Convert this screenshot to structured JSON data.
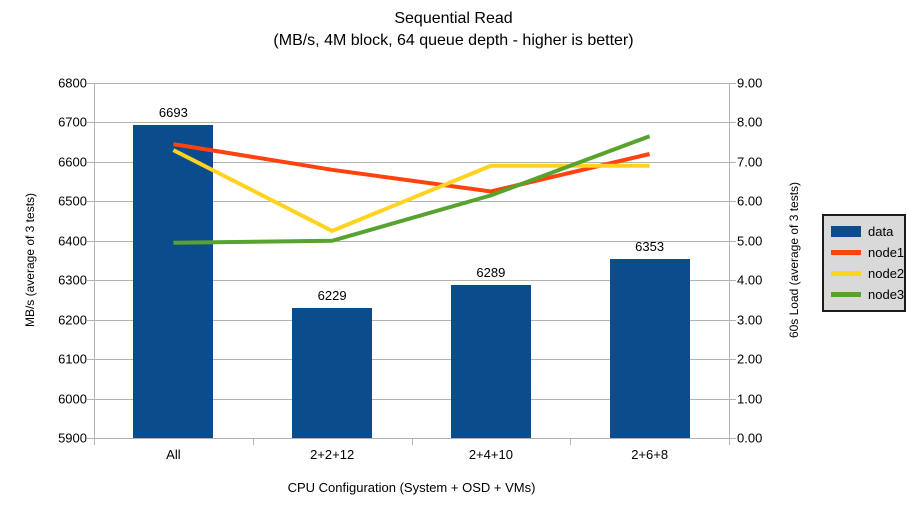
{
  "title": {
    "line1": "Sequential Read",
    "line2": "(MB/s, 4M block, 64 queue depth - higher is better)"
  },
  "chart_data": {
    "type": "combo_bar_line",
    "title": "Sequential Read",
    "subtitle": "(MB/s, 4M block, 64 queue depth - higher is better)",
    "categories": [
      "All",
      "2+2+12",
      "2+4+10",
      "2+6+8"
    ],
    "x_axis": {
      "label": "CPU Configuration (System + OSD + VMs)"
    },
    "left_axis": {
      "label": "MB/s (average of 3 tests)",
      "min": 5900,
      "max": 6800,
      "step": 100,
      "ticks": [
        "6800",
        "6700",
        "6600",
        "6500",
        "6400",
        "6300",
        "6200",
        "6100",
        "6000",
        "5900"
      ]
    },
    "right_axis": {
      "label": "60s Load (average of 3 tests)",
      "min": 0,
      "max": 9,
      "step": 1,
      "ticks": [
        "9.00",
        "8.00",
        "7.00",
        "6.00",
        "5.00",
        "4.00",
        "3.00",
        "2.00",
        "1.00",
        "0.00"
      ]
    },
    "grid": true,
    "bar_series": {
      "name": "data",
      "axis": "left",
      "color": "#0b4d8c",
      "values": [
        6693,
        6229,
        6289,
        6353
      ],
      "value_labels": [
        "6693",
        "6229",
        "6289",
        "6353"
      ]
    },
    "line_series": [
      {
        "name": "node1",
        "axis": "right",
        "color": "#ff420e",
        "values": [
          7.45,
          6.8,
          6.25,
          7.2
        ]
      },
      {
        "name": "node2",
        "axis": "right",
        "color": "#ffd320",
        "values": [
          7.3,
          5.25,
          6.9,
          6.9
        ]
      },
      {
        "name": "node3",
        "axis": "right",
        "color": "#58a32d",
        "values": [
          4.95,
          5.0,
          6.15,
          7.65
        ]
      }
    ],
    "legend": {
      "position": "right",
      "background": "#d9d9d9",
      "border_color": "#1c1c1c",
      "items": [
        {
          "label": "data",
          "swatch": "bar",
          "color": "#0b4d8c"
        },
        {
          "label": "node1",
          "swatch": "line",
          "color": "#ff420e"
        },
        {
          "label": "node2",
          "swatch": "line",
          "color": "#ffd320"
        },
        {
          "label": "node3",
          "swatch": "line",
          "color": "#58a32d"
        }
      ]
    },
    "colors": {
      "grid": "#b3b3b3",
      "axis": "#b3b3b3",
      "text": "#000000"
    }
  }
}
